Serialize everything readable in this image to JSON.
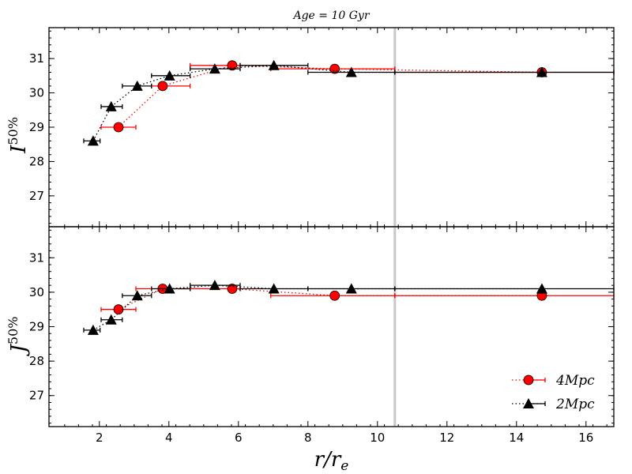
{
  "chart_data": [
    {
      "type": "scatter",
      "title": "Age = 10 Gyr",
      "xlabel": "",
      "ylabel": "I^{50%}",
      "ylabel_main": "I",
      "ylabel_sup": "50%",
      "xlim": [
        0.55,
        16.8
      ],
      "ylim": [
        26.1,
        31.9
      ],
      "yticks": [
        27,
        28,
        29,
        30,
        31
      ],
      "xticks": [],
      "grid": false,
      "vline_x": 10.5,
      "series": [
        {
          "name": "4Mpc",
          "marker": "circle",
          "color": "#ff0000",
          "points": [
            {
              "x": 2.55,
              "y": 29.0,
              "xlo": 2.05,
              "xhi": 3.05
            },
            {
              "x": 3.82,
              "y": 30.2,
              "xlo": 3.5,
              "xhi": 4.61
            },
            {
              "x": 5.82,
              "y": 30.8,
              "xlo": 4.61,
              "xhi": 6.05
            },
            {
              "x": 8.77,
              "y": 30.7,
              "xlo": 6.93,
              "xhi": 10.5
            },
            {
              "x": 14.73,
              "y": 30.6,
              "xlo": 10.5,
              "xhi": 16.8
            }
          ]
        },
        {
          "name": "2Mpc",
          "marker": "triangle",
          "color": "#000000",
          "points": [
            {
              "x": 1.82,
              "y": 28.6,
              "xlo": 1.55,
              "xhi": 2.02
            },
            {
              "x": 2.34,
              "y": 29.6,
              "xlo": 2.05,
              "xhi": 2.66
            },
            {
              "x": 3.09,
              "y": 30.2,
              "xlo": 2.66,
              "xhi": 3.5
            },
            {
              "x": 4.02,
              "y": 30.5,
              "xlo": 3.5,
              "xhi": 4.61
            },
            {
              "x": 5.32,
              "y": 30.7,
              "xlo": 4.61,
              "xhi": 6.05
            },
            {
              "x": 7.02,
              "y": 30.8,
              "xlo": 6.05,
              "xhi": 8.0
            },
            {
              "x": 9.25,
              "y": 30.6,
              "xlo": 8.0,
              "xhi": 10.5
            },
            {
              "x": 14.73,
              "y": 30.6,
              "xlo": 10.5,
              "xhi": 16.8
            }
          ]
        }
      ]
    },
    {
      "type": "scatter",
      "xlabel": "r/r_e",
      "xlabel_main": "r/r",
      "xlabel_sub": "e",
      "ylabel": "J^{50%}",
      "ylabel_main": "J",
      "ylabel_sup": "50%",
      "xlim": [
        0.55,
        16.8
      ],
      "ylim": [
        26.1,
        31.9
      ],
      "yticks": [
        27,
        28,
        29,
        30,
        31
      ],
      "xticks": [
        2,
        4,
        6,
        8,
        10,
        12,
        14,
        16
      ],
      "grid": false,
      "legend": "bottom-right",
      "vline_x": 10.5,
      "series": [
        {
          "name": "4Mpc",
          "marker": "circle",
          "color": "#ff0000",
          "points": [
            {
              "x": 2.55,
              "y": 29.5,
              "xlo": 2.05,
              "xhi": 3.05
            },
            {
              "x": 3.82,
              "y": 30.1,
              "xlo": 3.05,
              "xhi": 4.61
            },
            {
              "x": 5.82,
              "y": 30.1,
              "xlo": 4.61,
              "xhi": 6.05
            },
            {
              "x": 8.77,
              "y": 29.9,
              "xlo": 6.93,
              "xhi": 10.5
            },
            {
              "x": 14.73,
              "y": 29.9,
              "xlo": 10.5,
              "xhi": 16.8
            }
          ]
        },
        {
          "name": "2Mpc",
          "marker": "triangle",
          "color": "#000000",
          "points": [
            {
              "x": 1.82,
              "y": 28.9,
              "xlo": 1.55,
              "xhi": 2.02
            },
            {
              "x": 2.34,
              "y": 29.2,
              "xlo": 2.05,
              "xhi": 2.66
            },
            {
              "x": 3.09,
              "y": 29.9,
              "xlo": 2.66,
              "xhi": 3.5
            },
            {
              "x": 4.02,
              "y": 30.1,
              "xlo": 3.5,
              "xhi": 4.61
            },
            {
              "x": 5.32,
              "y": 30.2,
              "xlo": 4.61,
              "xhi": 6.05
            },
            {
              "x": 7.02,
              "y": 30.1,
              "xlo": 6.05,
              "xhi": 8.0
            },
            {
              "x": 9.25,
              "y": 30.1,
              "xlo": 8.0,
              "xhi": 10.5
            },
            {
              "x": 14.73,
              "y": 30.1,
              "xlo": 10.5,
              "xhi": 16.8
            }
          ]
        }
      ]
    }
  ]
}
